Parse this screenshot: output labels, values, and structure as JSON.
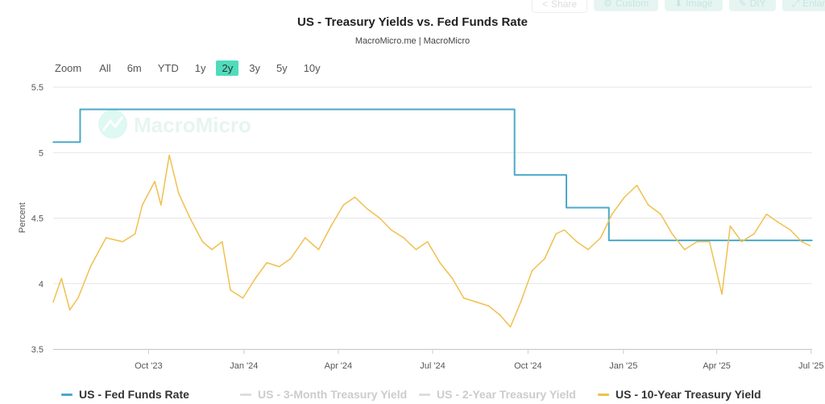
{
  "toolbar": {
    "share": "Share",
    "custom": "Custom",
    "image": "Image",
    "diy": "DIY",
    "enlarge": "Enlarge"
  },
  "zoom": {
    "label": "Zoom",
    "options": [
      "All",
      "6m",
      "YTD",
      "1y",
      "2y",
      "3y",
      "5y",
      "10y"
    ],
    "active": "2y"
  },
  "watermark": "MacroMicro",
  "colors": {
    "fed": "#4aa9c9",
    "ten_year": "#f0c04e",
    "accent": "#4fdcbc"
  },
  "chart_data": {
    "type": "line",
    "title": "US - Treasury Yields vs. Fed Funds Rate",
    "subtitle": "MacroMicro.me | MacroMicro",
    "ylabel": "Percent",
    "ylim": [
      3.5,
      5.5
    ],
    "yticks": [
      "3.5",
      "4",
      "4.5",
      "5",
      "5.5"
    ],
    "xlim": [
      "2023-07-01",
      "2025-07-02"
    ],
    "xticks": [
      {
        "date": "2023-10-01",
        "label": "Oct '23"
      },
      {
        "date": "2024-01-01",
        "label": "Jan '24"
      },
      {
        "date": "2024-04-01",
        "label": "Apr '24"
      },
      {
        "date": "2024-07-01",
        "label": "Jul '24"
      },
      {
        "date": "2024-10-01",
        "label": "Oct '24"
      },
      {
        "date": "2025-01-01",
        "label": "Jan '25"
      },
      {
        "date": "2025-04-01",
        "label": "Apr '25"
      },
      {
        "date": "2025-07-01",
        "label": "Jul '25"
      }
    ],
    "grid": true,
    "legend_position": "bottom",
    "series": [
      {
        "name": "US - Fed Funds Rate",
        "visible": true,
        "step": true,
        "points": [
          [
            "2023-07-01",
            5.08
          ],
          [
            "2023-07-27",
            5.33
          ],
          [
            "2024-09-18",
            4.83
          ],
          [
            "2024-11-07",
            4.58
          ],
          [
            "2024-12-18",
            4.33
          ],
          [
            "2025-07-02",
            4.33
          ]
        ]
      },
      {
        "name": "US - 3-Month Treasury Yield",
        "visible": false,
        "points": []
      },
      {
        "name": "US - 2-Year Treasury Yield",
        "visible": false,
        "points": []
      },
      {
        "name": "US - 10-Year Treasury Yield",
        "visible": true,
        "points": [
          [
            "2023-07-01",
            3.86
          ],
          [
            "2023-07-09",
            4.04
          ],
          [
            "2023-07-17",
            3.8
          ],
          [
            "2023-07-25",
            3.89
          ],
          [
            "2023-08-06",
            4.13
          ],
          [
            "2023-08-21",
            4.35
          ],
          [
            "2023-09-06",
            4.32
          ],
          [
            "2023-09-18",
            4.38
          ],
          [
            "2023-09-25",
            4.6
          ],
          [
            "2023-10-07",
            4.78
          ],
          [
            "2023-10-13",
            4.6
          ],
          [
            "2023-10-21",
            4.98
          ],
          [
            "2023-10-30",
            4.69
          ],
          [
            "2023-11-10",
            4.5
          ],
          [
            "2023-11-22",
            4.32
          ],
          [
            "2023-12-01",
            4.26
          ],
          [
            "2023-12-11",
            4.32
          ],
          [
            "2023-12-19",
            3.95
          ],
          [
            "2023-12-31",
            3.89
          ],
          [
            "2024-01-12",
            4.04
          ],
          [
            "2024-01-23",
            4.16
          ],
          [
            "2024-02-04",
            4.13
          ],
          [
            "2024-02-15",
            4.19
          ],
          [
            "2024-02-29",
            4.35
          ],
          [
            "2024-03-13",
            4.26
          ],
          [
            "2024-03-25",
            4.44
          ],
          [
            "2024-04-06",
            4.6
          ],
          [
            "2024-04-17",
            4.66
          ],
          [
            "2024-04-29",
            4.57
          ],
          [
            "2024-05-11",
            4.5
          ],
          [
            "2024-05-22",
            4.41
          ],
          [
            "2024-06-03",
            4.35
          ],
          [
            "2024-06-15",
            4.26
          ],
          [
            "2024-06-26",
            4.32
          ],
          [
            "2024-07-08",
            4.16
          ],
          [
            "2024-07-20",
            4.04
          ],
          [
            "2024-07-31",
            3.89
          ],
          [
            "2024-08-12",
            3.86
          ],
          [
            "2024-08-24",
            3.83
          ],
          [
            "2024-09-04",
            3.76
          ],
          [
            "2024-09-14",
            3.67
          ],
          [
            "2024-09-24",
            3.86
          ],
          [
            "2024-10-05",
            4.1
          ],
          [
            "2024-10-17",
            4.19
          ],
          [
            "2024-10-28",
            4.38
          ],
          [
            "2024-11-05",
            4.41
          ],
          [
            "2024-11-17",
            4.32
          ],
          [
            "2024-11-28",
            4.26
          ],
          [
            "2024-12-10",
            4.35
          ],
          [
            "2024-12-21",
            4.53
          ],
          [
            "2025-01-02",
            4.66
          ],
          [
            "2025-01-14",
            4.75
          ],
          [
            "2025-01-25",
            4.6
          ],
          [
            "2025-02-06",
            4.53
          ],
          [
            "2025-02-17",
            4.38
          ],
          [
            "2025-03-01",
            4.26
          ],
          [
            "2025-03-13",
            4.32
          ],
          [
            "2025-03-25",
            4.32
          ],
          [
            "2025-04-06",
            3.92
          ],
          [
            "2025-04-14",
            4.44
          ],
          [
            "2025-04-25",
            4.32
          ],
          [
            "2025-05-07",
            4.38
          ],
          [
            "2025-05-19",
            4.53
          ],
          [
            "2025-05-30",
            4.47
          ],
          [
            "2025-06-11",
            4.41
          ],
          [
            "2025-06-22",
            4.32
          ],
          [
            "2025-06-30",
            4.29
          ]
        ]
      }
    ]
  }
}
